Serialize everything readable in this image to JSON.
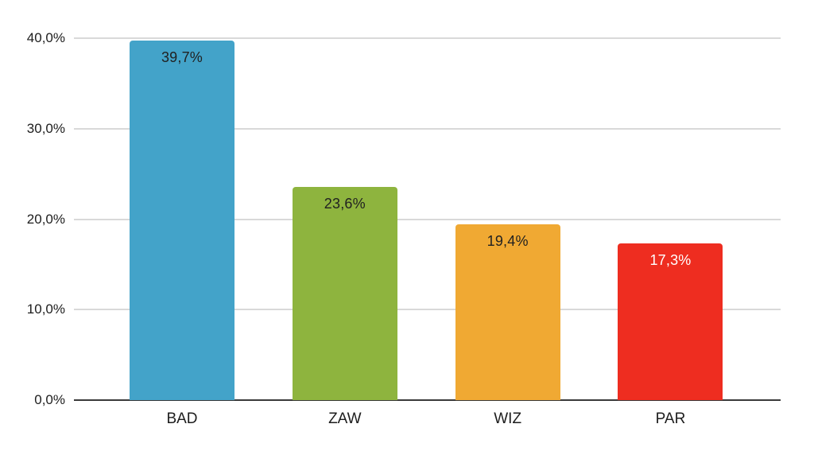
{
  "chart_data": {
    "type": "bar",
    "categories": [
      "BAD",
      "ZAW",
      "WIZ",
      "PAR"
    ],
    "values": [
      39.7,
      23.6,
      19.4,
      17.3
    ],
    "value_labels": [
      "39,7%",
      "23,6%",
      "19,4%",
      "17,3%"
    ],
    "bar_colors": [
      "#43A3C9",
      "#8EB43E",
      "#F0A933",
      "#EE2D20"
    ],
    "value_label_colors": [
      "#212121",
      "#212121",
      "#212121",
      "#FFFFFF"
    ],
    "title": "",
    "xlabel": "",
    "ylabel": "",
    "ylim": [
      0,
      40
    ],
    "y_tick_values": [
      0,
      10,
      20,
      30,
      40
    ],
    "y_tick_labels": [
      "0,0%",
      "10,0%",
      "20,0%",
      "30,0%",
      "40,0%"
    ],
    "decimal_separator": ",",
    "grid": "horizontal",
    "legend": "none",
    "gridline_color": "#D9D9D9",
    "axis_line_color": "#3A3A3A",
    "axis_text_color": "#1D1D1D",
    "background_color": "#FFFFFF"
  }
}
